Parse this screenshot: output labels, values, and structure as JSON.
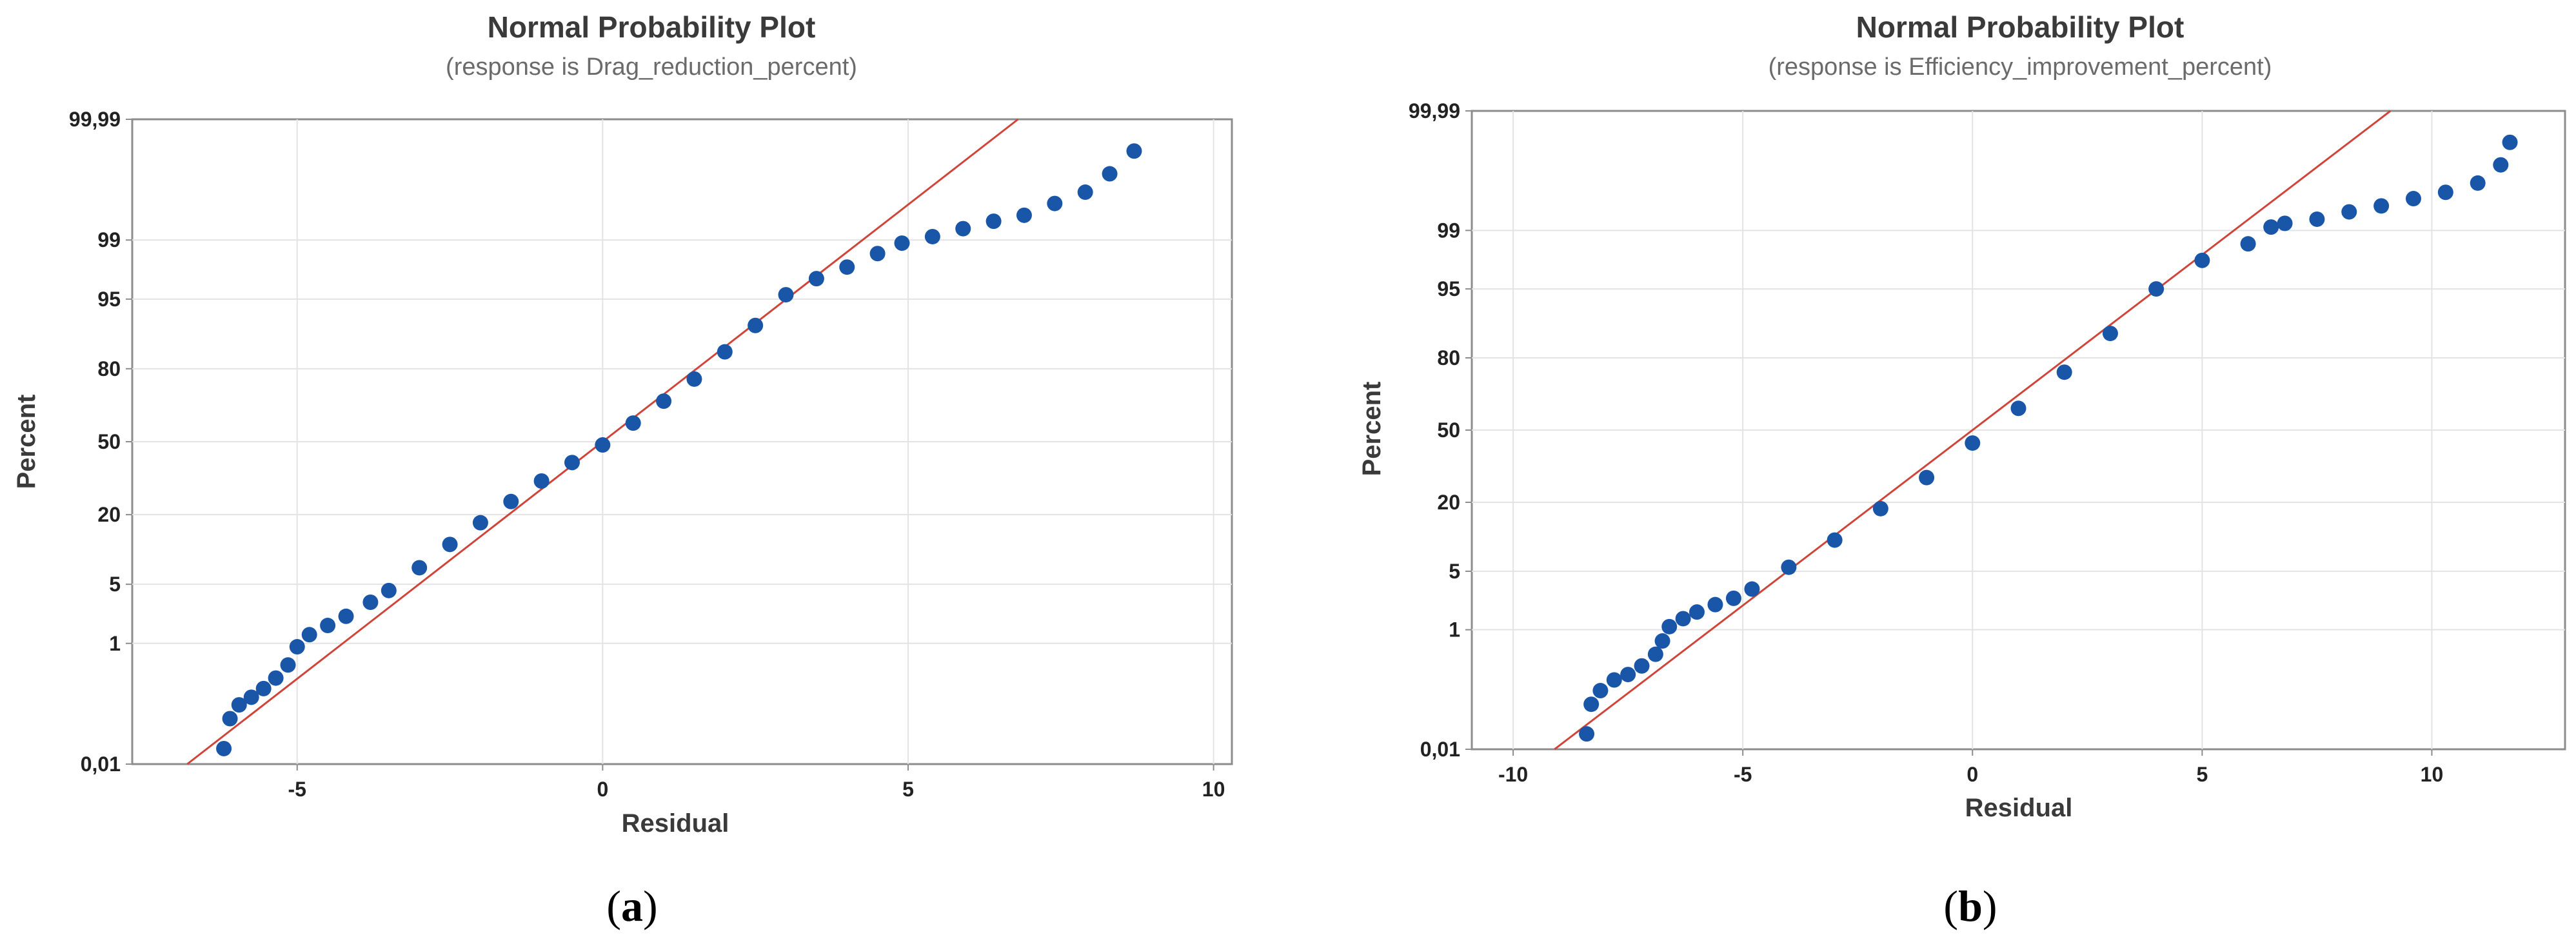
{
  "panels": [
    {
      "caption_open": "(",
      "caption_letter": "a",
      "caption_close": ")"
    },
    {
      "caption_open": "(",
      "caption_letter": "b",
      "caption_close": ")"
    }
  ],
  "chart_data": [
    {
      "type": "scatter",
      "title": "Normal Probability Plot",
      "subtitle": "(response is Drag_reduction_percent)",
      "xlabel": "Residual",
      "ylabel": "Percent",
      "xlim": [
        -7.7,
        10.3
      ],
      "x_ticks": [
        -5,
        0,
        5,
        10
      ],
      "x_tick_labels": [
        "-5",
        "0",
        "5",
        "10"
      ],
      "y_scale": "normal-probability",
      "y_ticks": [
        0.01,
        1,
        5,
        20,
        50,
        80,
        95,
        99,
        99.99
      ],
      "y_tick_labels": [
        "0,01",
        "1",
        "5",
        "20",
        "50",
        "80",
        "95",
        "99",
        "99,99"
      ],
      "grid": true,
      "marker_color": "#1a56a8",
      "fit_line_color": "#d0453a",
      "fit_line": {
        "x": [
          -6.8,
          6.8
        ],
        "percent": [
          0.01,
          99.99
        ]
      },
      "points": {
        "x": [
          -6.2,
          -6.1,
          -5.95,
          -5.75,
          -5.55,
          -5.35,
          -5.15,
          -5.0,
          -4.8,
          -4.5,
          -4.2,
          -3.8,
          -3.5,
          -3.0,
          -2.5,
          -2.0,
          -1.5,
          -1.0,
          -0.5,
          0.0,
          0.5,
          1.0,
          1.5,
          2.0,
          2.5,
          3.0,
          3.5,
          4.0,
          4.5,
          4.9,
          5.4,
          5.9,
          6.4,
          6.9,
          7.4,
          7.9,
          8.3,
          8.7
        ],
        "percent": [
          0.02,
          0.07,
          0.12,
          0.16,
          0.22,
          0.32,
          0.5,
          0.9,
          1.3,
          1.7,
          2.2,
          3.2,
          4.3,
          7.3,
          11.8,
          17.5,
          24.5,
          32.5,
          40.5,
          48.5,
          58.5,
          68.0,
          76.5,
          85.0,
          91.0,
          95.5,
          97.0,
          97.8,
          98.5,
          98.9,
          99.1,
          99.3,
          99.45,
          99.55,
          99.7,
          99.8,
          99.9,
          99.96
        ]
      }
    },
    {
      "type": "scatter",
      "title": "Normal Probability Plot",
      "subtitle": "(response is Efficiency_improvement_percent)",
      "xlabel": "Residual",
      "ylabel": "Percent",
      "xlim": [
        -10.9,
        12.9
      ],
      "x_ticks": [
        -10,
        -5,
        0,
        5,
        10
      ],
      "x_tick_labels": [
        "-10",
        "-5",
        "0",
        "5",
        "10"
      ],
      "y_scale": "normal-probability",
      "y_ticks": [
        0.01,
        1,
        5,
        20,
        50,
        80,
        95,
        99,
        99.99
      ],
      "y_tick_labels": [
        "0,01",
        "1",
        "5",
        "20",
        "50",
        "80",
        "95",
        "99",
        "99,99"
      ],
      "grid": true,
      "marker_color": "#1a56a8",
      "fit_line_color": "#d0453a",
      "fit_line": {
        "x": [
          -9.1,
          9.1
        ],
        "percent": [
          0.01,
          99.99
        ]
      },
      "points": {
        "x": [
          -8.4,
          -8.3,
          -8.1,
          -7.8,
          -7.5,
          -7.2,
          -6.9,
          -6.75,
          -6.6,
          -6.3,
          -6.0,
          -5.6,
          -5.2,
          -4.8,
          -4.0,
          -3.0,
          -2.0,
          -1.0,
          0.0,
          1.0,
          2.0,
          3.0,
          4.0,
          5.0,
          6.0,
          6.5,
          6.8,
          7.5,
          8.2,
          8.9,
          9.6,
          10.3,
          11.0,
          11.5,
          11.7
        ],
        "percent": [
          0.02,
          0.07,
          0.12,
          0.18,
          0.22,
          0.3,
          0.45,
          0.7,
          1.1,
          1.4,
          1.7,
          2.1,
          2.5,
          3.2,
          5.5,
          10.0,
          18.0,
          29.0,
          44.0,
          60.0,
          75.0,
          87.0,
          95.0,
          97.6,
          98.5,
          99.1,
          99.2,
          99.3,
          99.45,
          99.55,
          99.65,
          99.72,
          99.8,
          99.9,
          99.96
        ]
      }
    }
  ]
}
